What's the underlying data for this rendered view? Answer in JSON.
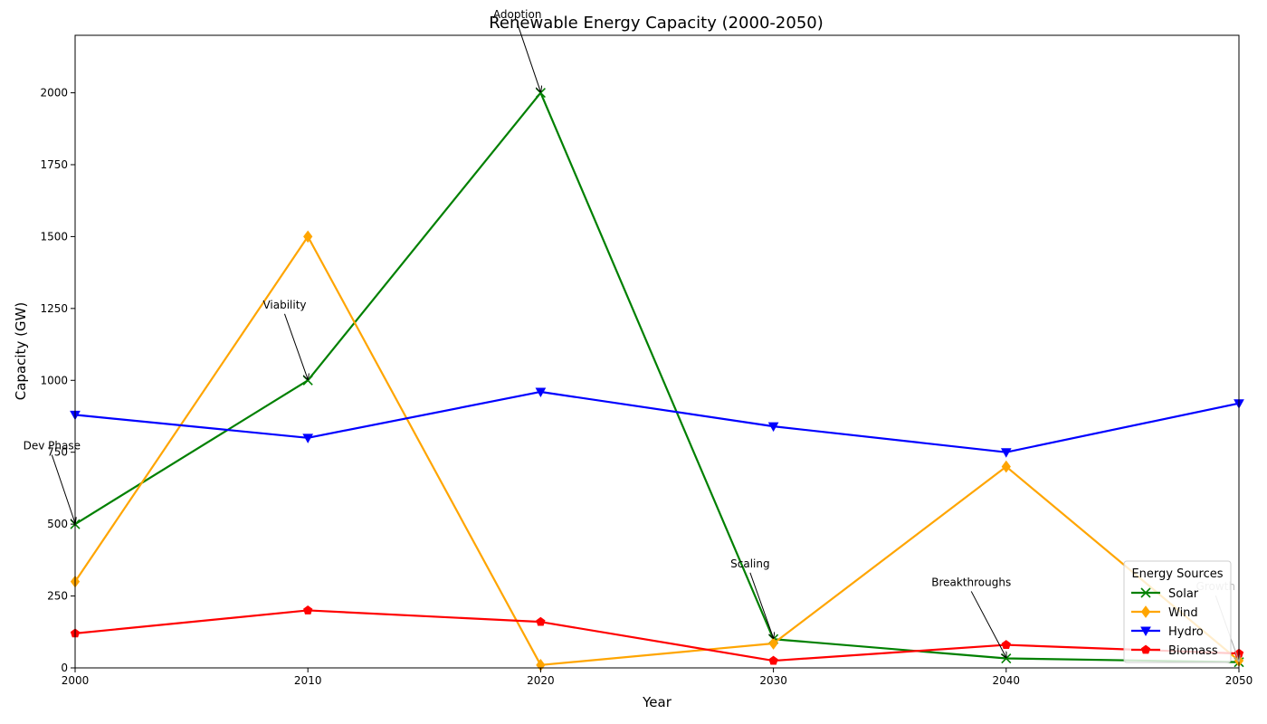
{
  "chart_data": {
    "type": "line",
    "title": "Renewable Energy Capacity (2000-2050)",
    "xlabel": "Year",
    "ylabel": "Capacity (GW)",
    "xlim": [
      2000,
      2050
    ],
    "ylim": [
      0,
      2200
    ],
    "x": [
      2000,
      2010,
      2020,
      2030,
      2040,
      2050
    ],
    "xticks": [
      "2000",
      "2010",
      "2020",
      "2030",
      "2040",
      "2050"
    ],
    "yticks": [
      "0",
      "250",
      "500",
      "750",
      "1000",
      "1250",
      "1500",
      "1750",
      "2000"
    ],
    "grid": false,
    "legend": {
      "title": "Energy Sources",
      "placement": "lower-right"
    },
    "series": [
      {
        "name": "Solar",
        "color": "#008000",
        "marker": "x",
        "values": [
          500,
          1000,
          2000,
          100,
          33,
          20
        ]
      },
      {
        "name": "Wind",
        "color": "#FFA500",
        "marker": "diamond",
        "values": [
          300,
          1500,
          10,
          85,
          700,
          25
        ]
      },
      {
        "name": "Hydro",
        "color": "#0000FF",
        "marker": "triangle-down",
        "values": [
          880,
          800,
          960,
          840,
          750,
          920
        ]
      },
      {
        "name": "Biomass",
        "color": "#FF0000",
        "marker": "pentagon",
        "values": [
          120,
          200,
          160,
          25,
          80,
          50
        ]
      }
    ],
    "annotations": [
      {
        "text": "Dev Phase",
        "x": 2000,
        "y": 500,
        "text_x": 1999,
        "text_y": 760,
        "align": "middle"
      },
      {
        "text": "Viability",
        "x": 2010,
        "y": 1000,
        "text_x": 2009,
        "text_y": 1250,
        "align": "middle"
      },
      {
        "text": "Adoption",
        "x": 2020,
        "y": 2000,
        "text_x": 2019,
        "text_y": 2260,
        "align": "middle"
      },
      {
        "text": "Scaling",
        "x": 2030,
        "y": 100,
        "text_x": 2029,
        "text_y": 350,
        "align": "middle"
      },
      {
        "text": "Breakthroughs",
        "x": 2040,
        "y": 33,
        "text_x": 2038.5,
        "text_y": 285,
        "align": "middle"
      },
      {
        "text": "Growth",
        "x": 2050,
        "y": 20,
        "text_x": 2049,
        "text_y": 270,
        "align": "middle"
      }
    ]
  }
}
